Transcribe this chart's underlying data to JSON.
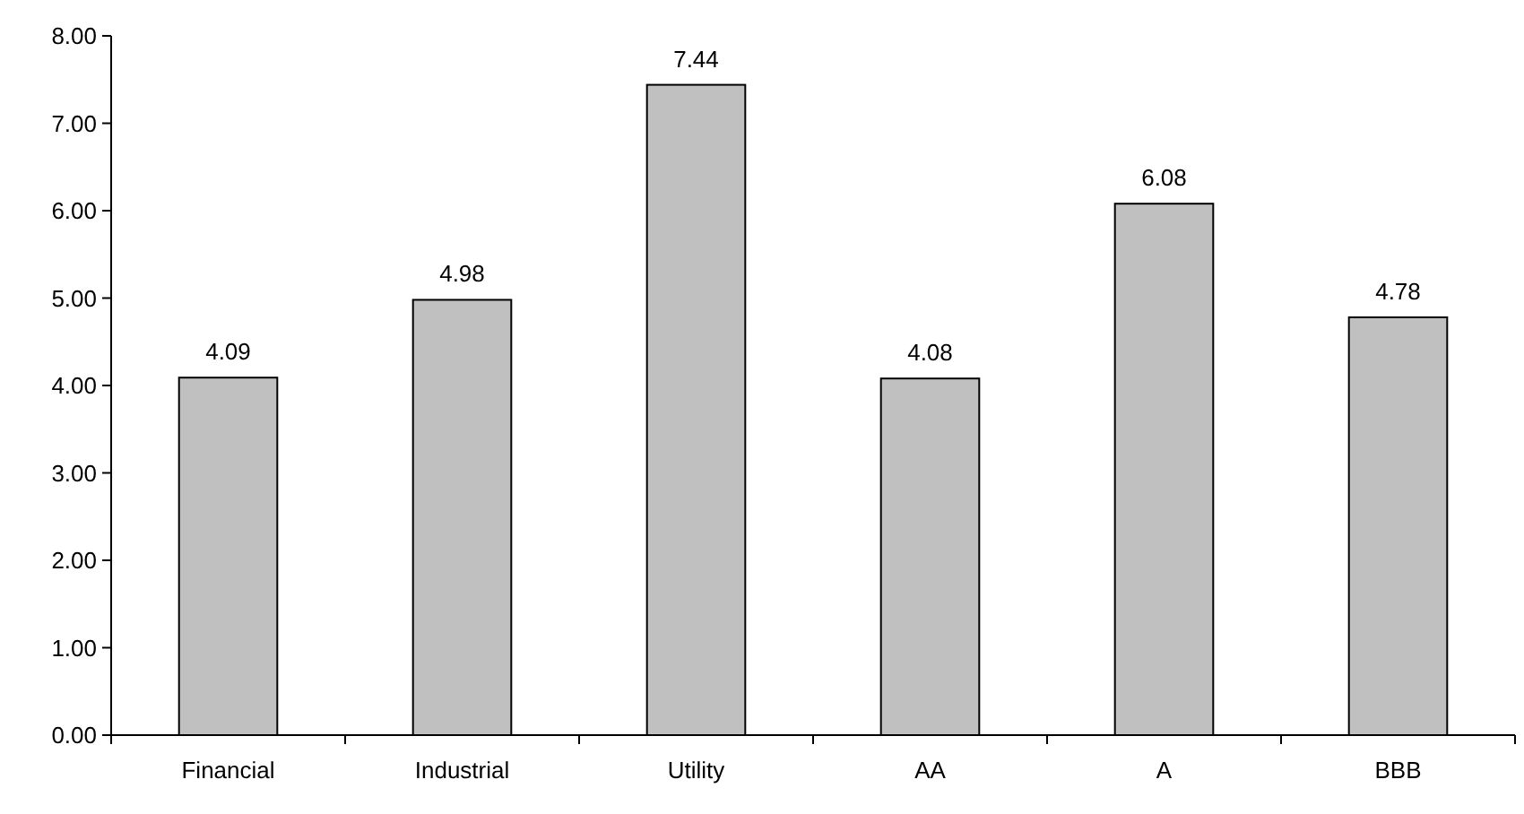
{
  "chart_data": {
    "type": "bar",
    "categories": [
      "Financial",
      "Industrial",
      "Utility",
      "AA",
      "A",
      "BBB"
    ],
    "values": [
      4.09,
      4.98,
      7.44,
      4.08,
      6.08,
      4.78
    ],
    "color": "#c0c0c0",
    "ylim": [
      0,
      8
    ],
    "yticks": [
      {
        "value": 0,
        "label": "0.00"
      },
      {
        "value": 1,
        "label": "1.00"
      },
      {
        "value": 2,
        "label": "2.00"
      },
      {
        "value": 3,
        "label": "3.00"
      },
      {
        "value": 4,
        "label": "4.00"
      },
      {
        "value": 5,
        "label": "5.00"
      },
      {
        "value": 6,
        "label": "6.00"
      },
      {
        "value": 7,
        "label": "7.00"
      },
      {
        "value": 8,
        "label": "8.00"
      }
    ],
    "data_labels": true,
    "grid": false
  }
}
